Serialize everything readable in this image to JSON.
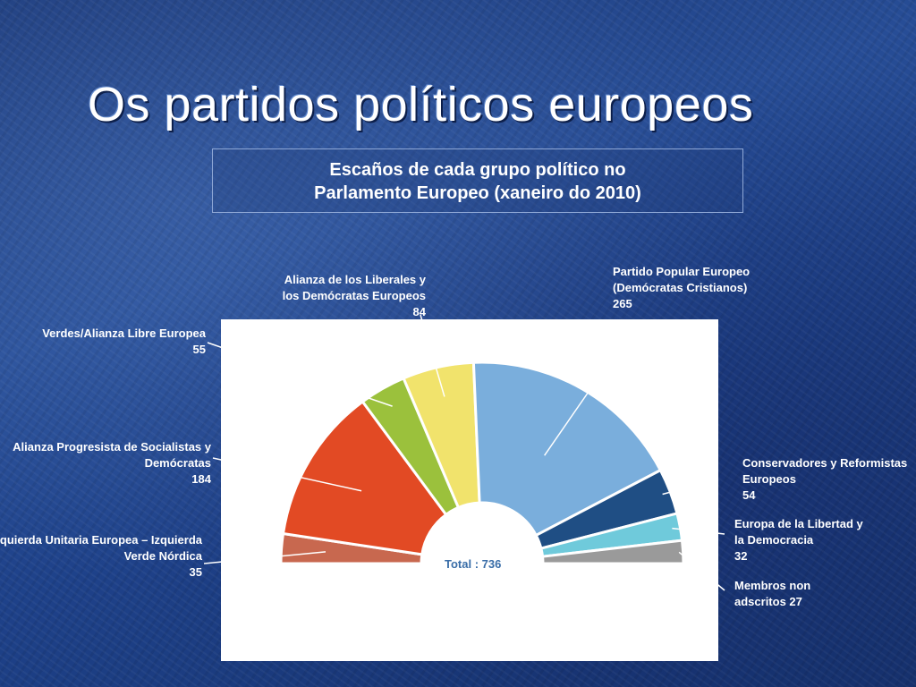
{
  "slide": {
    "title": "Os partidos políticos europeos",
    "subtitle_line1": "Escaños de cada grupo político no",
    "subtitle_line2": "Parlamento Europeo (xaneiro do 2010)"
  },
  "chart_data": {
    "type": "pie",
    "variant": "semicircle-parliament",
    "title": "Escaños de cada grupo político no Parlamento Europeo (xaneiro do 2010)",
    "total_label": "Total : 736",
    "total": 736,
    "series": [
      {
        "name_lines": [
          "Izquierda Unitaria Europea – Izquierda",
          "Verde Nórdica"
        ],
        "value_text": "35",
        "value": 35,
        "color": "#c8684f"
      },
      {
        "name_lines": [
          "Alianza Progresista de Socialistas y",
          "Demócratas"
        ],
        "value_text": "184",
        "value": 184,
        "color": "#e24a24"
      },
      {
        "name_lines": [
          "Verdes/Alianza Libre Europea"
        ],
        "value_text": "55",
        "value": 55,
        "color": "#9bc13c"
      },
      {
        "name_lines": [
          "Alianza de los Liberales y",
          "los Demócratas Europeos"
        ],
        "value_text": "84",
        "value": 84,
        "color": "#f1e36c"
      },
      {
        "name_lines": [
          "Partido Popular Europeo",
          "(Demócratas Cristianos)"
        ],
        "value_text": "265",
        "value": 265,
        "color": "#7aaedc"
      },
      {
        "name_lines": [
          "Conservadores y Reformistas",
          "Europeos"
        ],
        "value_text": "54",
        "value": 54,
        "color": "#1f4e84"
      },
      {
        "name_lines": [
          "Europa de la Libertad y",
          "la Democracia"
        ],
        "value_text": "32",
        "value": 32,
        "color": "#6fcadb"
      },
      {
        "name_lines": [
          "Membros non",
          "adscritos 27"
        ],
        "value_text": "",
        "value": 27,
        "color": "#9a9a9a"
      }
    ]
  }
}
